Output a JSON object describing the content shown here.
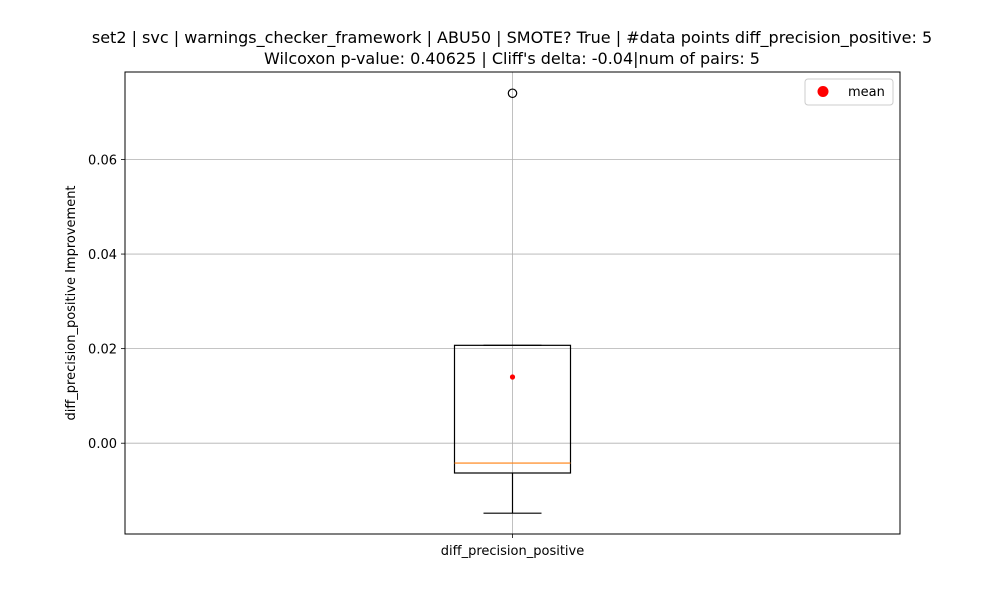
{
  "chart_data": {
    "type": "box",
    "title_line1": "set2 | svc | warnings_checker_framework | ABU50 | SMOTE? True | #data points diff_precision_positive: 5",
    "title_line2": "Wilcoxon p-value: 0.40625 | Cliff's delta: -0.04|num of pairs: 5",
    "xlabel": "",
    "ylabel": "diff_precision_positive Improvement",
    "categories": [
      "diff_precision_positive"
    ],
    "ylim": [
      -0.0192,
      0.0785
    ],
    "yticks": [
      0.0,
      0.02,
      0.04,
      0.06
    ],
    "ytick_labels": [
      "0.00",
      "0.02",
      "0.04",
      "0.06"
    ],
    "grid": true,
    "legend_position": "top-right",
    "legend_label": "mean",
    "box": {
      "whisker_low": -0.0148,
      "q1": -0.0063,
      "median": -0.0042,
      "q3": 0.0207,
      "whisker_high": 0.0207,
      "mean": 0.014,
      "outliers": [
        0.074
      ]
    },
    "colors": {
      "box": "#000000",
      "median": "#ff7f0e",
      "mean": "#ff0000",
      "grid": "#b0b0b0"
    }
  }
}
